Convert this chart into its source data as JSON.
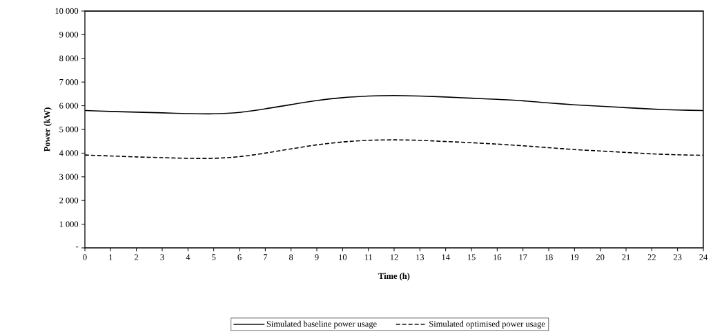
{
  "chart_data": {
    "type": "line",
    "xlabel": "Time (h)",
    "ylabel": "Power (kW)",
    "x": [
      0,
      1,
      2,
      3,
      4,
      5,
      6,
      7,
      8,
      9,
      10,
      11,
      12,
      13,
      14,
      15,
      16,
      17,
      18,
      19,
      20,
      21,
      22,
      23,
      24
    ],
    "series": [
      {
        "name": "Simulated baseline power usage",
        "color": "#000000",
        "line_style": "solid",
        "values": [
          5800,
          5760,
          5730,
          5700,
          5670,
          5660,
          5720,
          5870,
          6050,
          6220,
          6340,
          6410,
          6430,
          6410,
          6370,
          6320,
          6270,
          6210,
          6120,
          6040,
          5980,
          5920,
          5860,
          5820,
          5800
        ]
      },
      {
        "name": "Simulated optimised power usage",
        "color": "#000000",
        "line_style": "dashed",
        "values": [
          3920,
          3880,
          3840,
          3810,
          3780,
          3780,
          3850,
          4000,
          4180,
          4350,
          4470,
          4540,
          4560,
          4540,
          4490,
          4440,
          4380,
          4310,
          4230,
          4150,
          4090,
          4030,
          3970,
          3930,
          3910
        ]
      }
    ],
    "xlim": [
      0,
      24
    ],
    "xticks": [
      0,
      1,
      2,
      3,
      4,
      5,
      6,
      7,
      8,
      9,
      10,
      11,
      12,
      13,
      14,
      15,
      16,
      17,
      18,
      19,
      20,
      21,
      22,
      23,
      24
    ],
    "ylim": [
      0,
      10000
    ],
    "yticks": [
      {
        "value": 0,
        "label": "-"
      },
      {
        "value": 1000,
        "label": "1 000"
      },
      {
        "value": 2000,
        "label": "2 000"
      },
      {
        "value": 3000,
        "label": "3 000"
      },
      {
        "value": 4000,
        "label": "4 000"
      },
      {
        "value": 5000,
        "label": "5 000"
      },
      {
        "value": 6000,
        "label": "6 000"
      },
      {
        "value": 7000,
        "label": "7 000"
      },
      {
        "value": 8000,
        "label": "8 000"
      },
      {
        "value": 9000,
        "label": "9 000"
      },
      {
        "value": 10000,
        "label": "10 000"
      }
    ],
    "grid": false,
    "legend": "bottom",
    "marker": "none"
  }
}
